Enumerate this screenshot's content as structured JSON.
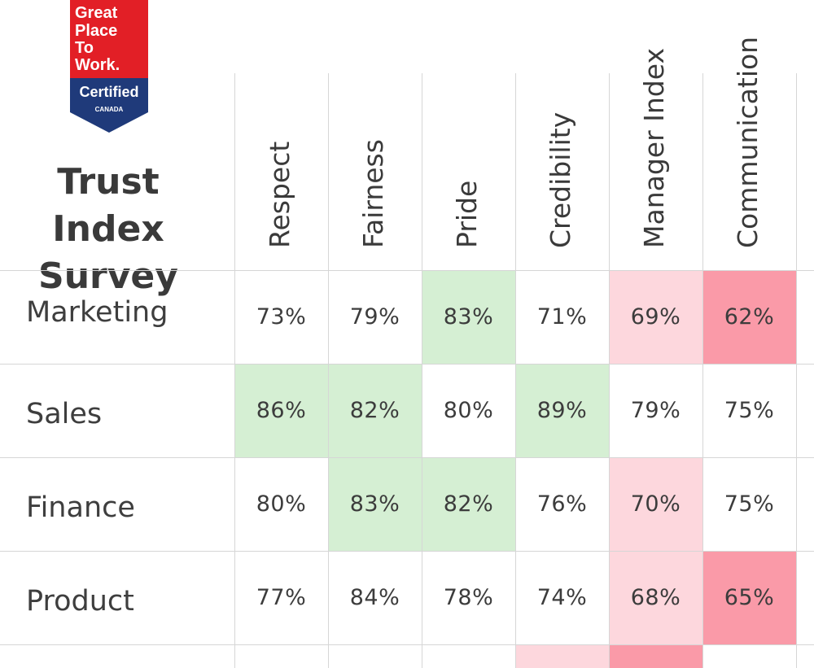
{
  "logo": {
    "lines": [
      "Great",
      "Place",
      "To",
      "Work."
    ],
    "certified": "Certified",
    "country": "CANADA",
    "red": "#e21f26",
    "navy": "#1f3a7a"
  },
  "title": {
    "line1": "Trust Index",
    "line2": "Survey"
  },
  "colors": {
    "green": "#d5efd3",
    "light_red": "#fdd7dd",
    "red": "#fa9aa8",
    "grid": "#d6d6d6"
  },
  "chart_data": {
    "type": "heatmap",
    "title": "Trust Index Survey",
    "columns": [
      "Respect",
      "Fairness",
      "Pride",
      "Credibility",
      "Manager Index",
      "Communication"
    ],
    "rows": [
      "Marketing",
      "Sales",
      "Finance",
      "Product"
    ],
    "values": [
      [
        73,
        79,
        83,
        71,
        69,
        62
      ],
      [
        86,
        82,
        80,
        89,
        79,
        75
      ],
      [
        80,
        83,
        82,
        76,
        70,
        75
      ],
      [
        77,
        84,
        78,
        74,
        68,
        65
      ]
    ],
    "labels": [
      [
        "73%",
        "79%",
        "83%",
        "71%",
        "69%",
        "62%"
      ],
      [
        "86%",
        "82%",
        "80%",
        "89%",
        "79%",
        "75%"
      ],
      [
        "80%",
        "83%",
        "82%",
        "76%",
        "70%",
        "75%"
      ],
      [
        "77%",
        "84%",
        "78%",
        "74%",
        "68%",
        "65%"
      ]
    ],
    "highlight": [
      [
        "none",
        "none",
        "green",
        "none",
        "light_red",
        "red"
      ],
      [
        "green",
        "green",
        "none",
        "green",
        "none",
        "none"
      ],
      [
        "none",
        "green",
        "green",
        "none",
        "light_red",
        "none"
      ],
      [
        "none",
        "none",
        "none",
        "none",
        "light_red",
        "red"
      ]
    ],
    "partial_row_highlight": [
      "none",
      "none",
      "none",
      "light_red",
      "red",
      "none"
    ]
  }
}
